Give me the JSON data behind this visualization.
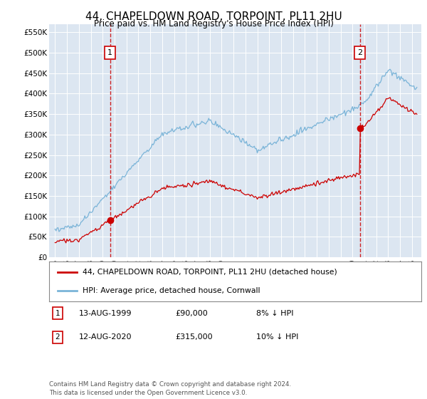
{
  "title": "44, CHAPELDOWN ROAD, TORPOINT, PL11 2HU",
  "subtitle": "Price paid vs. HM Land Registry's House Price Index (HPI)",
  "ylim": [
    0,
    570000
  ],
  "yticks": [
    0,
    50000,
    100000,
    150000,
    200000,
    250000,
    300000,
    350000,
    400000,
    450000,
    500000,
    550000
  ],
  "ytick_labels": [
    "£0",
    "£50K",
    "£100K",
    "£150K",
    "£200K",
    "£250K",
    "£300K",
    "£350K",
    "£400K",
    "£450K",
    "£500K",
    "£550K"
  ],
  "background_color": "#dce6f1",
  "hpi_color": "#7ab4d8",
  "price_color": "#cc0000",
  "sale1_date": 1999.62,
  "sale1_price": 90000,
  "sale2_date": 2020.62,
  "sale2_price": 315000,
  "legend_label_price": "44, CHAPELDOWN ROAD, TORPOINT, PL11 2HU (detached house)",
  "legend_label_hpi": "HPI: Average price, detached house, Cornwall",
  "note1_date": "13-AUG-1999",
  "note1_price": "£90,000",
  "note1_hpi": "8% ↓ HPI",
  "note2_date": "12-AUG-2020",
  "note2_price": "£315,000",
  "note2_hpi": "10% ↓ HPI",
  "footer": "Contains HM Land Registry data © Crown copyright and database right 2024.\nThis data is licensed under the Open Government Licence v3.0."
}
